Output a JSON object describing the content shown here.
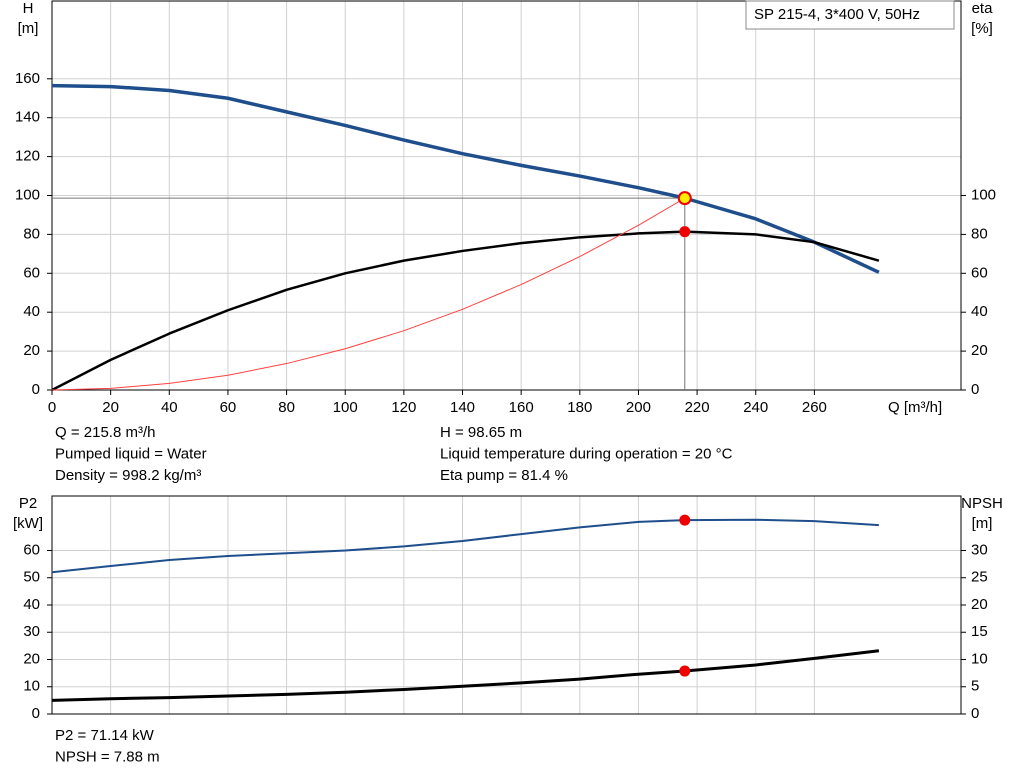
{
  "chart_data": [
    {
      "type": "line",
      "legend_text": "SP 215-4, 3*400 V, 50Hz",
      "y_label": "H",
      "y_unit": "[m]",
      "y2_label": "eta",
      "y2_unit": "[%]",
      "x_label": "Q [m³/h]",
      "xlim": [
        0,
        310
      ],
      "xticks": [
        0,
        20,
        40,
        60,
        80,
        100,
        120,
        140,
        160,
        180,
        200,
        220,
        240,
        260
      ],
      "ylim": [
        0,
        200
      ],
      "yticks": [
        0,
        20,
        40,
        60,
        80,
        100,
        120,
        140,
        160
      ],
      "y2lim": [
        0,
        200
      ],
      "y2ticks": [
        0,
        20,
        40,
        60,
        80,
        100
      ],
      "grid": true,
      "series": [
        {
          "color": "#1f4e8c",
          "width": 3.5,
          "x": [
            0,
            20,
            40,
            60,
            80,
            100,
            120,
            140,
            160,
            180,
            200,
            215.8,
            240,
            260,
            282
          ],
          "values": [
            156.5,
            156,
            154,
            150,
            143,
            136,
            128.5,
            121.5,
            115.5,
            110,
            104,
            98.65,
            88,
            76,
            60.5
          ]
        },
        {
          "color": "#000000",
          "width": 2.5,
          "axis": "y2",
          "x": [
            0,
            20,
            40,
            60,
            80,
            100,
            120,
            140,
            160,
            180,
            200,
            215.8,
            240,
            260,
            282
          ],
          "values": [
            0,
            15.5,
            29,
            41,
            51.5,
            60,
            66.5,
            71.5,
            75.5,
            78.5,
            80.5,
            81.4,
            80,
            76,
            66.5
          ]
        },
        {
          "color": "#ff4040",
          "width": 1,
          "x": [
            0,
            20,
            40,
            60,
            80,
            100,
            120,
            140,
            160,
            180,
            200,
            215.8
          ],
          "values": [
            0,
            0.85,
            3.4,
            7.6,
            13.6,
            21.2,
            30.5,
            41.5,
            54.2,
            68.6,
            84.7,
            98.65
          ]
        }
      ],
      "operating_point": {
        "x": 215.8,
        "y": 98.65,
        "y2": 81.4
      },
      "info": [
        [
          "Q = 215.8 m³/h",
          "H = 98.65 m"
        ],
        [
          "Pumped liquid = Water",
          "Liquid temperature during operation = 20 °C"
        ],
        [
          "Density = 998.2 kg/m³",
          "Eta pump = 81.4 %"
        ]
      ]
    },
    {
      "type": "line",
      "y_label": "P2",
      "y_unit": "[kW]",
      "y2_label": "NPSH",
      "y2_unit": "[m]",
      "xlim": [
        0,
        310
      ],
      "ylim": [
        0,
        80
      ],
      "yticks": [
        0,
        10,
        20,
        30,
        40,
        50,
        60
      ],
      "y2lim": [
        0,
        40
      ],
      "y2ticks": [
        0,
        5,
        10,
        15,
        20,
        25,
        30
      ],
      "grid": true,
      "series": [
        {
          "color": "#1f4e8c",
          "width": 2,
          "x": [
            0,
            20,
            40,
            60,
            80,
            100,
            120,
            140,
            160,
            180,
            200,
            215.8,
            240,
            260,
            282
          ],
          "values": [
            52,
            54.3,
            56.5,
            58,
            59,
            60,
            61.5,
            63.5,
            66,
            68.5,
            70.5,
            71.14,
            71.3,
            70.8,
            69.3
          ]
        },
        {
          "color": "#000000",
          "width": 3,
          "axis": "y2",
          "x": [
            0,
            20,
            40,
            60,
            80,
            100,
            120,
            140,
            160,
            180,
            200,
            215.8,
            240,
            260,
            282
          ],
          "values": [
            2.5,
            2.8,
            3,
            3.3,
            3.6,
            4,
            4.5,
            5.1,
            5.7,
            6.4,
            7.3,
            7.88,
            9,
            10.2,
            11.6
          ]
        }
      ],
      "operating_point": {
        "x": 215.8,
        "y": 71.14,
        "y2": 7.88
      },
      "info": [
        [
          "P2 = 71.14 kW"
        ],
        [
          "NPSH = 7.88 m"
        ]
      ]
    }
  ]
}
